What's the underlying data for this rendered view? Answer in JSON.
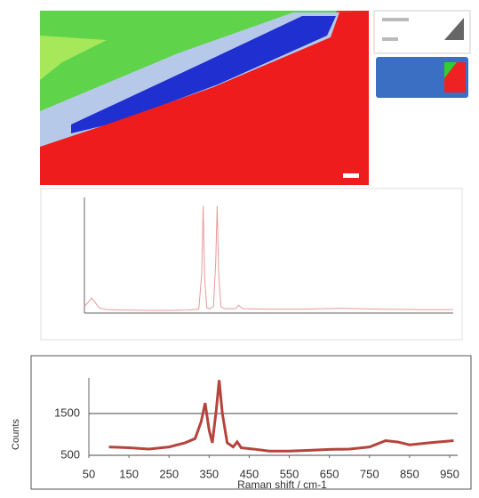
{
  "chart_data": [
    {
      "type": "line",
      "x": [
        0,
        20,
        40,
        60,
        100,
        200,
        280,
        310,
        318,
        322,
        326,
        332,
        340,
        350,
        356,
        360,
        364,
        370,
        380,
        410,
        418,
        430,
        500,
        600,
        700,
        800,
        900,
        1000
      ],
      "series": [
        {
          "color": "#e89a9a",
          "values": [
            150,
            350,
            120,
            80,
            70,
            60,
            70,
            90,
            900,
            2500,
            800,
            120,
            100,
            150,
            1200,
            2500,
            900,
            150,
            100,
            100,
            180,
            100,
            90,
            90,
            110,
            90,
            80,
            80
          ]
        }
      ],
      "xlim": [
        0,
        1000
      ],
      "ylim": [
        0,
        2700
      ]
    },
    {
      "type": "line",
      "x_label": "Raman shift / cm-1",
      "y_label": "Counts",
      "x": [
        100,
        150,
        200,
        250,
        290,
        315,
        330,
        340,
        350,
        358,
        368,
        375,
        383,
        395,
        410,
        420,
        430,
        460,
        500,
        550,
        600,
        650,
        700,
        750,
        790,
        820,
        850,
        900,
        960
      ],
      "series": [
        {
          "color": "#b5443c",
          "values": [
            700,
            680,
            650,
            700,
            800,
            900,
            1300,
            1750,
            1100,
            800,
            1600,
            2300,
            1500,
            800,
            700,
            820,
            680,
            650,
            600,
            600,
            620,
            640,
            650,
            700,
            850,
            820,
            750,
            800,
            850
          ]
        }
      ],
      "xlim": [
        50,
        970
      ],
      "ylim": [
        500,
        2350
      ],
      "xticks": [
        50,
        150,
        250,
        350,
        450,
        550,
        650,
        750,
        850,
        950
      ],
      "yticks": [
        500,
        1500
      ],
      "grid": true
    }
  ]
}
